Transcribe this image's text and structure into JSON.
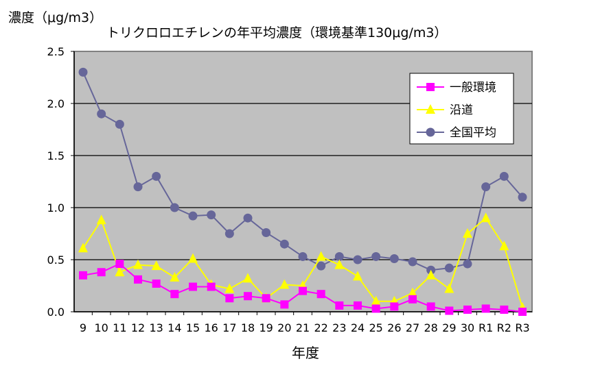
{
  "chart_data": {
    "type": "line",
    "title": "トリクロロエチレンの年平均濃度（環境基準130μg/m3）",
    "ylabel": "濃度（μg/m3）",
    "xlabel": "年度",
    "ylim": [
      0,
      2.5
    ],
    "yticks": [
      "0.0",
      "0.5",
      "1.0",
      "1.5",
      "2.0",
      "2.5"
    ],
    "grid": true,
    "legend_position": "top-right",
    "categories": [
      "9",
      "10",
      "11",
      "12",
      "13",
      "14",
      "15",
      "16",
      "17",
      "18",
      "19",
      "20",
      "21",
      "22",
      "23",
      "24",
      "25",
      "26",
      "27",
      "28",
      "29",
      "30",
      "R1",
      "R2",
      "R3"
    ],
    "series": [
      {
        "name": "一般環境",
        "color": "#ff00ff",
        "marker": "square",
        "values": [
          0.35,
          0.38,
          0.46,
          0.31,
          0.27,
          0.17,
          0.24,
          0.24,
          0.13,
          0.15,
          0.13,
          0.07,
          0.2,
          0.17,
          0.06,
          0.06,
          0.03,
          0.05,
          0.12,
          0.05,
          0.01,
          0.02,
          0.03,
          0.02,
          0.0
        ]
      },
      {
        "name": "沿道",
        "color": "#ffff00",
        "marker": "triangle",
        "values": [
          0.61,
          0.88,
          0.38,
          0.45,
          0.44,
          0.33,
          0.51,
          0.26,
          0.22,
          0.32,
          0.13,
          0.26,
          0.25,
          0.53,
          0.45,
          0.34,
          0.1,
          0.1,
          0.18,
          0.35,
          0.22,
          0.75,
          0.9,
          0.63,
          0.04
        ]
      },
      {
        "name": "全国平均",
        "color": "#666699",
        "marker": "circle",
        "values": [
          2.3,
          1.9,
          1.8,
          1.2,
          1.3,
          1.0,
          0.92,
          0.93,
          0.75,
          0.9,
          0.76,
          0.65,
          0.53,
          0.44,
          0.53,
          0.5,
          0.53,
          0.51,
          0.48,
          0.4,
          0.42,
          0.46,
          1.2,
          1.3,
          1.1
        ]
      }
    ],
    "plot_background": "#c0c0c0"
  }
}
